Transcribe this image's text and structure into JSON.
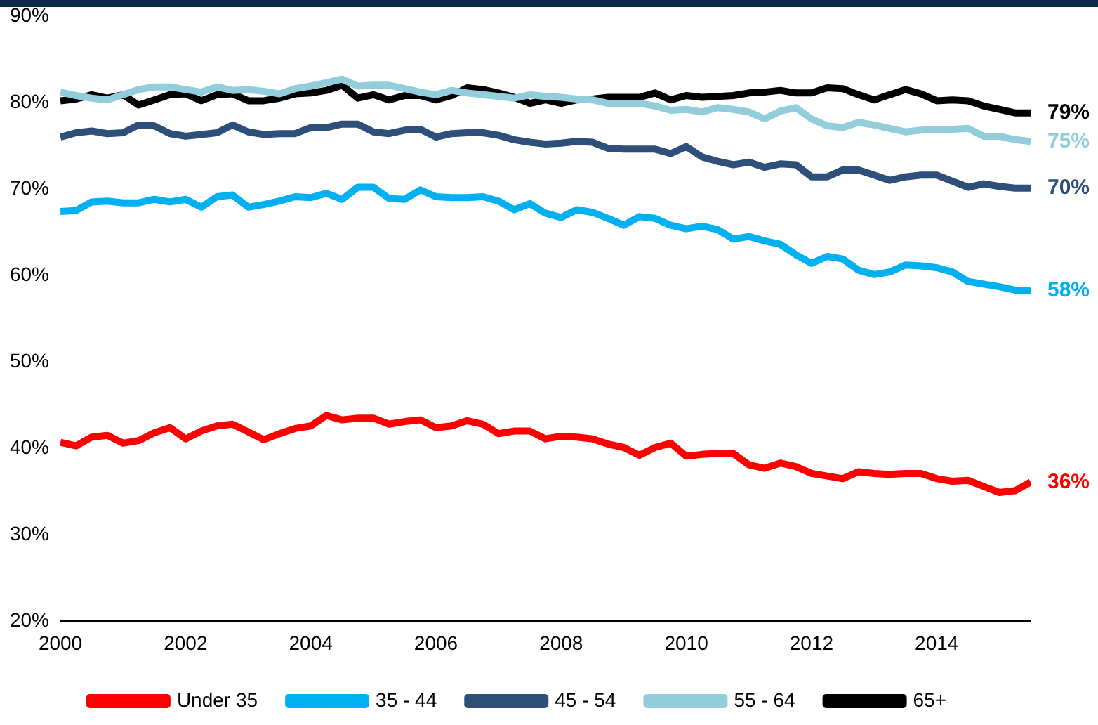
{
  "chart_data": {
    "type": "line",
    "legend": "bottom",
    "x": [
      2000,
      2000.25,
      2000.5,
      2000.75,
      2001,
      2001.25,
      2001.5,
      2001.75,
      2002,
      2002.25,
      2002.5,
      2002.75,
      2003,
      2003.25,
      2003.5,
      2003.75,
      2004,
      2004.25,
      2004.5,
      2004.75,
      2005,
      2005.25,
      2005.5,
      2005.75,
      2006,
      2006.25,
      2006.5,
      2006.75,
      2007,
      2007.25,
      2007.5,
      2007.75,
      2008,
      2008.25,
      2008.5,
      2008.75,
      2009,
      2009.25,
      2009.5,
      2009.75,
      2010,
      2010.25,
      2010.5,
      2010.75,
      2011,
      2011.25,
      2011.5,
      2011.75,
      2012,
      2012.25,
      2012.5,
      2012.75,
      2013,
      2013.25,
      2013.5,
      2013.75,
      2014,
      2014.25,
      2014.5,
      2014.75,
      2015,
      2015.25,
      2015.5
    ],
    "xlim": [
      2000,
      2015.5
    ],
    "xticks": [
      2000,
      2002,
      2004,
      2006,
      2008,
      2010,
      2012,
      2014
    ],
    "ylim": [
      20,
      90
    ],
    "yticks": [
      {
        "value": 20,
        "label": "20%"
      },
      {
        "value": 30,
        "label": "30%"
      },
      {
        "value": 40,
        "label": "40%"
      },
      {
        "value": 50,
        "label": "50%"
      },
      {
        "value": 60,
        "label": "60%"
      },
      {
        "value": 70,
        "label": "70%"
      },
      {
        "value": 80,
        "label": "80%"
      },
      {
        "value": 90,
        "label": "90%"
      }
    ],
    "series": [
      {
        "name": "Under 35",
        "color": "#ff0000",
        "values": [
          40.7,
          40.3,
          41.3,
          41.5,
          40.6,
          40.9,
          41.8,
          42.4,
          41.1,
          42.0,
          42.6,
          42.8,
          41.9,
          41.0,
          41.7,
          42.3,
          42.6,
          43.8,
          43.3,
          43.5,
          43.5,
          42.8,
          43.1,
          43.3,
          42.4,
          42.6,
          43.2,
          42.8,
          41.7,
          42.0,
          42.0,
          41.1,
          41.4,
          41.3,
          41.1,
          40.5,
          40.1,
          39.2,
          40.1,
          40.6,
          39.1,
          39.3,
          39.4,
          39.4,
          38.1,
          37.7,
          38.3,
          37.9,
          37.1,
          36.8,
          36.5,
          37.3,
          37.1,
          37.0,
          37.1,
          37.1,
          36.5,
          36.2,
          36.3,
          35.6,
          34.9,
          35.1,
          36.1
        ],
        "value_labels": [
          null,
          null,
          null,
          null,
          null,
          null,
          null,
          null,
          null,
          null,
          null,
          null,
          null,
          null,
          null,
          null,
          null,
          null,
          null,
          null,
          null,
          null,
          null,
          null,
          null,
          null,
          null,
          null,
          null,
          null,
          null,
          null,
          null,
          null,
          null,
          null,
          null,
          null,
          null,
          null,
          null,
          null,
          null,
          null,
          null,
          null,
          null,
          null,
          null,
          null,
          null,
          null,
          null,
          null,
          null,
          null,
          null,
          null,
          null,
          null,
          null,
          null,
          "36%"
        ]
      },
      {
        "name": "35 - 44",
        "color": "#00b0f0",
        "values": [
          67.4,
          67.5,
          68.5,
          68.6,
          68.4,
          68.4,
          68.8,
          68.5,
          68.8,
          67.9,
          69.1,
          69.3,
          67.9,
          68.2,
          68.6,
          69.1,
          69.0,
          69.5,
          68.8,
          70.2,
          70.2,
          68.9,
          68.8,
          69.9,
          69.1,
          69.0,
          69.0,
          69.1,
          68.6,
          67.6,
          68.3,
          67.2,
          66.7,
          67.6,
          67.3,
          66.6,
          65.8,
          66.8,
          66.6,
          65.8,
          65.4,
          65.7,
          65.3,
          64.2,
          64.5,
          64.0,
          63.6,
          62.4,
          61.4,
          62.2,
          61.9,
          60.6,
          60.1,
          60.4,
          61.2,
          61.1,
          60.9,
          60.4,
          59.3,
          59.0,
          58.7,
          58.3,
          58.2
        ],
        "value_labels": [
          null,
          null,
          null,
          null,
          null,
          null,
          null,
          null,
          null,
          null,
          null,
          null,
          null,
          null,
          null,
          null,
          null,
          null,
          null,
          null,
          null,
          null,
          null,
          null,
          null,
          null,
          null,
          null,
          null,
          null,
          null,
          null,
          null,
          null,
          null,
          null,
          null,
          null,
          null,
          null,
          null,
          null,
          null,
          null,
          null,
          null,
          null,
          null,
          null,
          null,
          null,
          null,
          null,
          null,
          null,
          null,
          null,
          null,
          null,
          null,
          null,
          null,
          "58%"
        ]
      },
      {
        "name": "45 - 54",
        "color": "#2e4f79",
        "values": [
          76.0,
          76.5,
          76.7,
          76.4,
          76.5,
          77.4,
          77.3,
          76.4,
          76.1,
          76.3,
          76.5,
          77.4,
          76.6,
          76.3,
          76.4,
          76.4,
          77.1,
          77.1,
          77.5,
          77.5,
          76.6,
          76.4,
          76.8,
          76.9,
          76.0,
          76.4,
          76.5,
          76.5,
          76.2,
          75.7,
          75.4,
          75.2,
          75.3,
          75.5,
          75.4,
          74.7,
          74.6,
          74.6,
          74.6,
          74.1,
          74.9,
          73.7,
          73.2,
          72.8,
          73.1,
          72.5,
          72.9,
          72.8,
          71.4,
          71.4,
          72.2,
          72.2,
          71.6,
          71.0,
          71.4,
          71.6,
          71.6,
          70.9,
          70.2,
          70.6,
          70.3,
          70.1,
          70.1
        ],
        "value_labels": [
          null,
          null,
          null,
          null,
          null,
          null,
          null,
          null,
          null,
          null,
          null,
          null,
          null,
          null,
          null,
          null,
          null,
          null,
          null,
          null,
          null,
          null,
          null,
          null,
          null,
          null,
          null,
          null,
          null,
          null,
          null,
          null,
          null,
          null,
          null,
          null,
          null,
          null,
          null,
          null,
          null,
          null,
          null,
          null,
          null,
          null,
          null,
          null,
          null,
          null,
          null,
          null,
          null,
          null,
          null,
          null,
          null,
          null,
          null,
          null,
          null,
          null,
          "70%"
        ]
      },
      {
        "name": "55 - 64",
        "color": "#92cddc",
        "values": [
          81.2,
          80.8,
          80.5,
          80.3,
          80.9,
          81.5,
          81.8,
          81.8,
          81.5,
          81.2,
          81.8,
          81.4,
          81.5,
          81.3,
          81.0,
          81.6,
          81.9,
          82.3,
          82.7,
          81.9,
          82.0,
          82.0,
          81.6,
          81.2,
          80.9,
          81.4,
          81.1,
          80.9,
          80.7,
          80.5,
          80.9,
          80.7,
          80.6,
          80.4,
          80.3,
          79.9,
          79.9,
          79.9,
          79.6,
          79.1,
          79.2,
          78.9,
          79.4,
          79.2,
          78.9,
          78.1,
          79.0,
          79.4,
          78.1,
          77.3,
          77.1,
          77.7,
          77.4,
          77.0,
          76.6,
          76.8,
          76.9,
          76.9,
          77.0,
          76.1,
          76.1,
          75.7,
          75.5
        ],
        "value_labels": [
          null,
          null,
          null,
          null,
          null,
          null,
          null,
          null,
          null,
          null,
          null,
          null,
          null,
          null,
          null,
          null,
          null,
          null,
          null,
          null,
          null,
          null,
          null,
          null,
          null,
          null,
          null,
          null,
          null,
          null,
          null,
          null,
          null,
          null,
          null,
          null,
          null,
          null,
          null,
          null,
          null,
          null,
          null,
          null,
          null,
          null,
          null,
          null,
          null,
          null,
          null,
          null,
          null,
          null,
          null,
          null,
          null,
          null,
          null,
          null,
          null,
          null,
          "75%"
        ]
      },
      {
        "name": "65+",
        "color": "#000000",
        "values": [
          80.2,
          80.4,
          80.9,
          80.5,
          80.9,
          79.7,
          80.3,
          80.9,
          81.0,
          80.2,
          80.9,
          81.0,
          80.2,
          80.2,
          80.5,
          81.0,
          81.1,
          81.4,
          82.0,
          80.5,
          80.9,
          80.3,
          80.8,
          80.8,
          80.3,
          80.8,
          81.7,
          81.5,
          81.1,
          80.6,
          79.9,
          80.3,
          79.9,
          80.3,
          80.4,
          80.6,
          80.6,
          80.6,
          81.1,
          80.3,
          80.8,
          80.6,
          80.7,
          80.8,
          81.1,
          81.2,
          81.4,
          81.1,
          81.1,
          81.7,
          81.6,
          80.9,
          80.3,
          80.9,
          81.5,
          81.0,
          80.2,
          80.3,
          80.2,
          79.6,
          79.2,
          78.8,
          78.8
        ],
        "value_labels": [
          null,
          null,
          null,
          null,
          null,
          null,
          null,
          null,
          null,
          null,
          null,
          null,
          null,
          null,
          null,
          null,
          null,
          null,
          null,
          null,
          null,
          null,
          null,
          null,
          null,
          null,
          null,
          null,
          null,
          null,
          null,
          null,
          null,
          null,
          null,
          null,
          null,
          null,
          null,
          null,
          null,
          null,
          null,
          null,
          null,
          null,
          null,
          null,
          null,
          null,
          null,
          null,
          null,
          null,
          null,
          null,
          null,
          null,
          null,
          null,
          null,
          null,
          "79%"
        ]
      }
    ]
  }
}
